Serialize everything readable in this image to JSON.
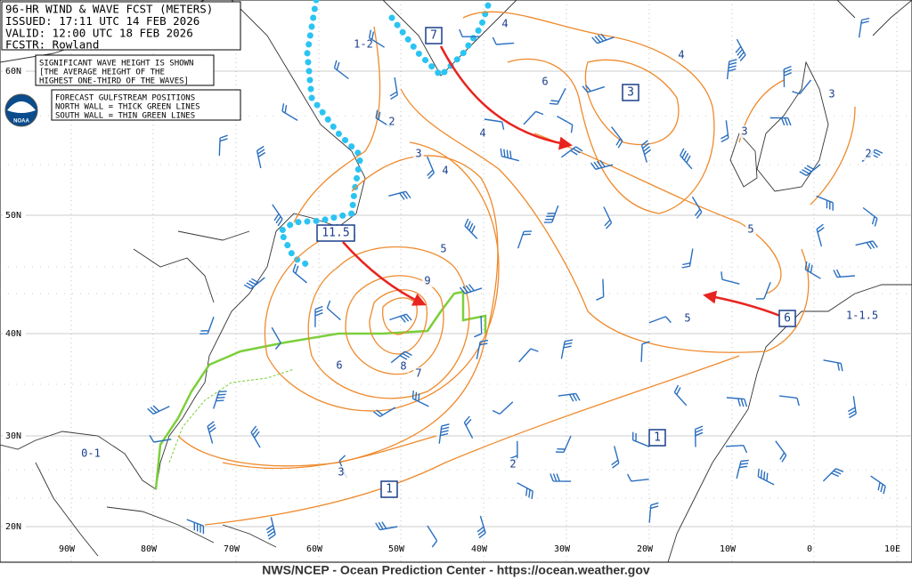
{
  "header": {
    "title": "96-HR WIND & WAVE FCST (METERS)",
    "issued": "ISSUED: 17:11 UTC 14 FEB 2026",
    "valid": "VALID: 12:00 UTC 18 FEB 2026",
    "forecaster": "FCSTR:  Rowland"
  },
  "note": {
    "lines": [
      "SIGNIFICANT WAVE HEIGHT IS SHOWN",
      "[THE AVERAGE HEIGHT OF THE",
      "HIGHEST ONE-THIRD OF THE WAVES]"
    ]
  },
  "logo": "NOAA",
  "gulfstream": {
    "lines": [
      "FORECAST GULFSTREAM POSITIONS",
      "NORTH WALL = THICK GREEN LINES",
      "SOUTH WALL = THIN GREEN LINES"
    ]
  },
  "latitude_labels": [
    "60N",
    "50N",
    "40N",
    "30N",
    "20N"
  ],
  "longitude_labels": [
    "90W",
    "80W",
    "70W",
    "60W",
    "50W",
    "40W",
    "30W",
    "20W",
    "10W",
    "0",
    "10E"
  ],
  "boxed_labels": [
    "7",
    "3",
    "11.5",
    "6",
    "1",
    "1"
  ],
  "contour_labels": [
    "1-2",
    "2",
    "3",
    "4",
    "4",
    "6",
    "4",
    "4",
    "3",
    "3",
    "2",
    "5",
    "9",
    "5",
    "5",
    "6",
    "8",
    "7",
    "3",
    "2",
    "0-1",
    "1-1.5"
  ],
  "footer": "NWS/NCEP - Ocean Prediction Center - https://ocean.weather.gov"
}
